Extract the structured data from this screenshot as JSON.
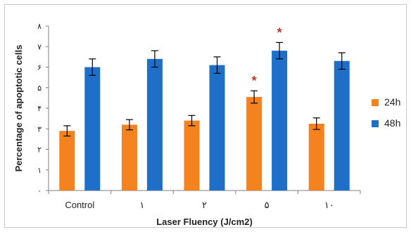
{
  "chart_data": {
    "type": "bar",
    "xlabel": "Laser Fluency (J/cm2)",
    "ylabel": "Percentage of apoptotic cells",
    "categories": [
      "Control",
      "١",
      "٢",
      "۵",
      "١٠"
    ],
    "ylim": [
      0,
      8
    ],
    "yticks": [
      0,
      1,
      2,
      3,
      4,
      5,
      6,
      7,
      8
    ],
    "ytick_labels": [
      "٠",
      "١",
      "٢",
      "٣",
      "۴",
      "۵",
      "۶",
      "٧",
      "٨"
    ],
    "series": [
      {
        "name": "24h",
        "values": [
          2.9,
          3.2,
          3.4,
          4.55,
          3.25
        ],
        "errors": [
          0.25,
          0.25,
          0.25,
          0.3,
          0.28
        ],
        "color": "#F4821F"
      },
      {
        "name": "48h",
        "values": [
          6.0,
          6.4,
          6.1,
          6.8,
          6.3
        ],
        "errors": [
          0.4,
          0.4,
          0.4,
          0.4,
          0.4
        ],
        "color": "#1F6FC9"
      }
    ],
    "annotations": [
      {
        "text": "*",
        "category": "۵",
        "series": "24h"
      },
      {
        "text": "*",
        "category": "۵",
        "series": "48h"
      }
    ],
    "grid": false,
    "legend_position": "right"
  }
}
